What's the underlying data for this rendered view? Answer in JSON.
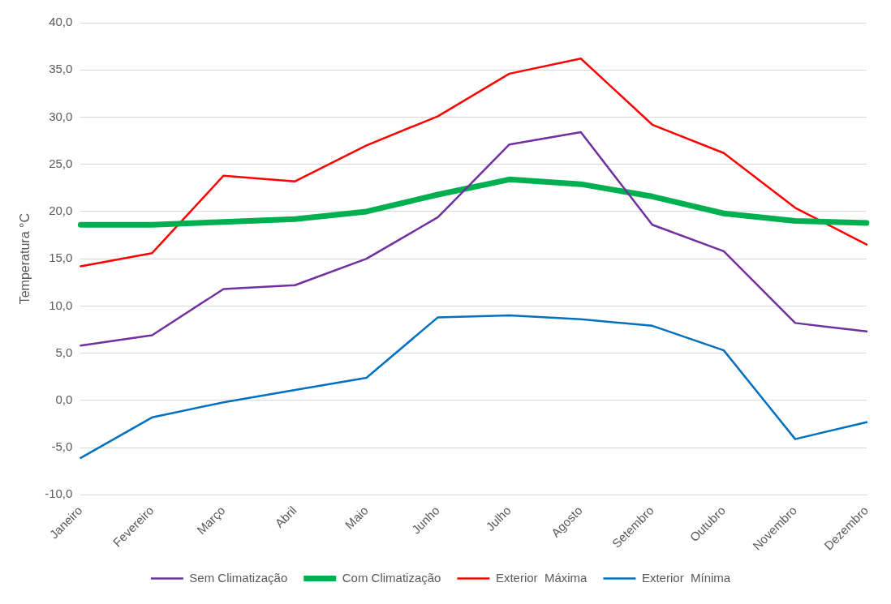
{
  "chart_data": {
    "type": "line",
    "ylabel": "Temperatura °C",
    "categories": [
      "Janeiro",
      "Fevereiro",
      "Março",
      "Abril",
      "Maio",
      "Junho",
      "Julho",
      "Agosto",
      "Setembro",
      "Outubro",
      "Novembro",
      "Dezembro"
    ],
    "series": [
      {
        "name": "Sem Climatização",
        "color": "#7030a0",
        "values": [
          5.8,
          6.9,
          11.8,
          12.2,
          15.0,
          19.4,
          27.1,
          28.4,
          18.6,
          15.8,
          8.2,
          7.3
        ]
      },
      {
        "name": "Com Climatização",
        "color": "#00b050",
        "values": [
          18.6,
          18.6,
          18.9,
          19.2,
          20.0,
          21.8,
          23.4,
          22.9,
          21.6,
          19.8,
          19.0,
          18.8
        ]
      },
      {
        "name": "Exterior  Máxima",
        "color": "#ff0000",
        "values": [
          14.2,
          15.6,
          23.8,
          23.2,
          27.0,
          30.1,
          34.6,
          36.2,
          29.2,
          26.2,
          20.4,
          16.5
        ]
      },
      {
        "name": "Exterior  Mínima",
        "color": "#0070c0",
        "values": [
          -6.1,
          -1.8,
          -0.2,
          1.1,
          2.4,
          8.8,
          9.0,
          8.6,
          7.9,
          5.3,
          -4.1,
          -2.3
        ]
      }
    ],
    "ylim": [
      -10,
      40
    ],
    "yticks": [
      {
        "value": -10,
        "label": "-10,0"
      },
      {
        "value": -5,
        "label": "-5,0"
      },
      {
        "value": 0,
        "label": "0,0"
      },
      {
        "value": 5,
        "label": "5,0"
      },
      {
        "value": 10,
        "label": "10,0"
      },
      {
        "value": 15,
        "label": "15,0"
      },
      {
        "value": 20,
        "label": "20,0"
      },
      {
        "value": 25,
        "label": "25,0"
      },
      {
        "value": 30,
        "label": "30,0"
      },
      {
        "value": 35,
        "label": "35,0"
      },
      {
        "value": 40,
        "label": "40,0"
      }
    ],
    "grid": "y",
    "legend": "bottom",
    "marker": "none",
    "line_style": "solid"
  }
}
